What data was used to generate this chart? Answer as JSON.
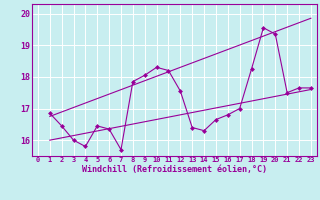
{
  "title": "",
  "xlabel": "Windchill (Refroidissement éolien,°C)",
  "ylabel": "",
  "bg_color": "#c8eef0",
  "grid_color": "#ffffff",
  "line_color": "#990099",
  "xlim": [
    -0.5,
    23.5
  ],
  "ylim": [
    15.5,
    20.3
  ],
  "xticks": [
    0,
    1,
    2,
    3,
    4,
    5,
    6,
    7,
    8,
    9,
    10,
    11,
    12,
    13,
    14,
    15,
    16,
    17,
    18,
    19,
    20,
    21,
    22,
    23
  ],
  "yticks": [
    16,
    17,
    18,
    19,
    20
  ],
  "series1_x": [
    1,
    2,
    3,
    4,
    5,
    6,
    7,
    8,
    9,
    10,
    11,
    12,
    13,
    14,
    15,
    16,
    17,
    18,
    19,
    20,
    21,
    22,
    23
  ],
  "series1_y": [
    16.85,
    16.45,
    16.0,
    15.8,
    16.45,
    16.35,
    15.7,
    17.85,
    18.05,
    18.3,
    18.2,
    17.55,
    16.4,
    16.3,
    16.65,
    16.8,
    17.0,
    18.25,
    19.55,
    19.35,
    17.5,
    17.65,
    17.65
  ],
  "series2_x": [
    1,
    23
  ],
  "series2_y": [
    16.0,
    17.6
  ],
  "series3_x": [
    1,
    23
  ],
  "series3_y": [
    16.75,
    19.85
  ]
}
